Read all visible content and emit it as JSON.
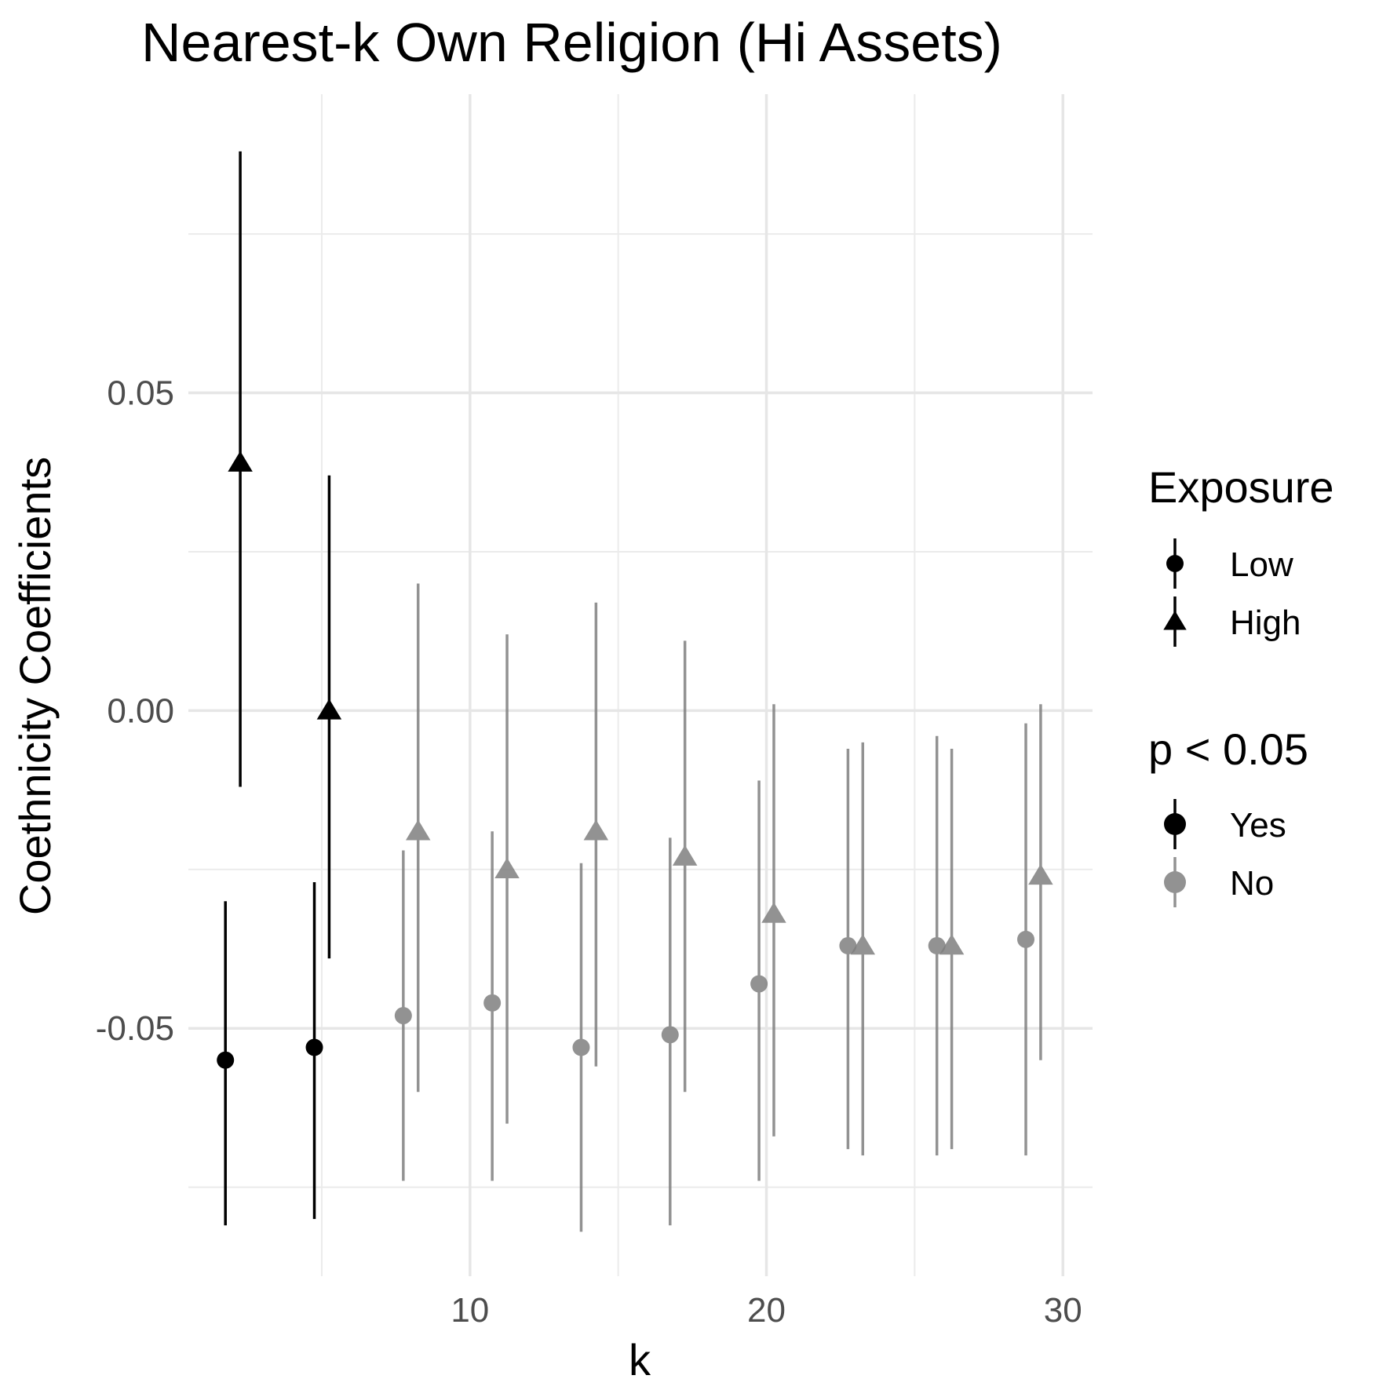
{
  "chart_data": {
    "type": "scatter",
    "title": "Nearest-k Own Religion (Hi Assets)",
    "xlabel": "k",
    "ylabel": "Coethnicity Coefficients",
    "xlim": [
      0.5,
      31
    ],
    "ylim": [
      -0.089,
      0.097
    ],
    "x_ticks": [
      10,
      20,
      30
    ],
    "x_tick_labels": [
      "10",
      "20",
      "30"
    ],
    "y_ticks": [
      -0.05,
      0.0,
      0.05
    ],
    "y_tick_labels": [
      "-0.05",
      "0.00",
      "0.05"
    ],
    "grid": true,
    "legend_position": "right",
    "legends": [
      {
        "title": "Exposure",
        "items": [
          {
            "label": "Low",
            "shape": "circle"
          },
          {
            "label": "High",
            "shape": "triangle"
          }
        ]
      },
      {
        "title": "p < 0.05",
        "items": [
          {
            "label": "Yes",
            "color": "#000000"
          },
          {
            "label": "No",
            "color": "#808080"
          }
        ]
      }
    ],
    "series": [
      {
        "name": "Low",
        "shape": "circle",
        "points": [
          {
            "k": 2,
            "estimate": -0.055,
            "lower": -0.081,
            "upper": -0.03,
            "significant": true
          },
          {
            "k": 5,
            "estimate": -0.053,
            "lower": -0.08,
            "upper": -0.027,
            "significant": true
          },
          {
            "k": 8,
            "estimate": -0.048,
            "lower": -0.074,
            "upper": -0.022,
            "significant": false
          },
          {
            "k": 11,
            "estimate": -0.046,
            "lower": -0.074,
            "upper": -0.019,
            "significant": false
          },
          {
            "k": 14,
            "estimate": -0.053,
            "lower": -0.082,
            "upper": -0.024,
            "significant": false
          },
          {
            "k": 17,
            "estimate": -0.051,
            "lower": -0.081,
            "upper": -0.02,
            "significant": false
          },
          {
            "k": 20,
            "estimate": -0.043,
            "lower": -0.074,
            "upper": -0.011,
            "significant": false
          },
          {
            "k": 23,
            "estimate": -0.037,
            "lower": -0.069,
            "upper": -0.006,
            "significant": false
          },
          {
            "k": 26,
            "estimate": -0.037,
            "lower": -0.07,
            "upper": -0.004,
            "significant": false
          },
          {
            "k": 29,
            "estimate": -0.036,
            "lower": -0.07,
            "upper": -0.002,
            "significant": false
          }
        ]
      },
      {
        "name": "High",
        "shape": "triangle",
        "points": [
          {
            "k": 2,
            "estimate": 0.039,
            "lower": -0.012,
            "upper": 0.088,
            "significant": true
          },
          {
            "k": 5,
            "estimate": 0.0,
            "lower": -0.039,
            "upper": 0.037,
            "significant": true
          },
          {
            "k": 8,
            "estimate": -0.019,
            "lower": -0.06,
            "upper": 0.02,
            "significant": false
          },
          {
            "k": 11,
            "estimate": -0.025,
            "lower": -0.065,
            "upper": 0.012,
            "significant": false
          },
          {
            "k": 14,
            "estimate": -0.019,
            "lower": -0.056,
            "upper": 0.017,
            "significant": false
          },
          {
            "k": 17,
            "estimate": -0.023,
            "lower": -0.06,
            "upper": 0.011,
            "significant": false
          },
          {
            "k": 20,
            "estimate": -0.032,
            "lower": -0.067,
            "upper": 0.001,
            "significant": false
          },
          {
            "k": 23,
            "estimate": -0.037,
            "lower": -0.07,
            "upper": -0.005,
            "significant": false
          },
          {
            "k": 26,
            "estimate": -0.037,
            "lower": -0.069,
            "upper": -0.006,
            "significant": false
          },
          {
            "k": 29,
            "estimate": -0.026,
            "lower": -0.055,
            "upper": 0.001,
            "significant": false
          }
        ]
      }
    ]
  }
}
